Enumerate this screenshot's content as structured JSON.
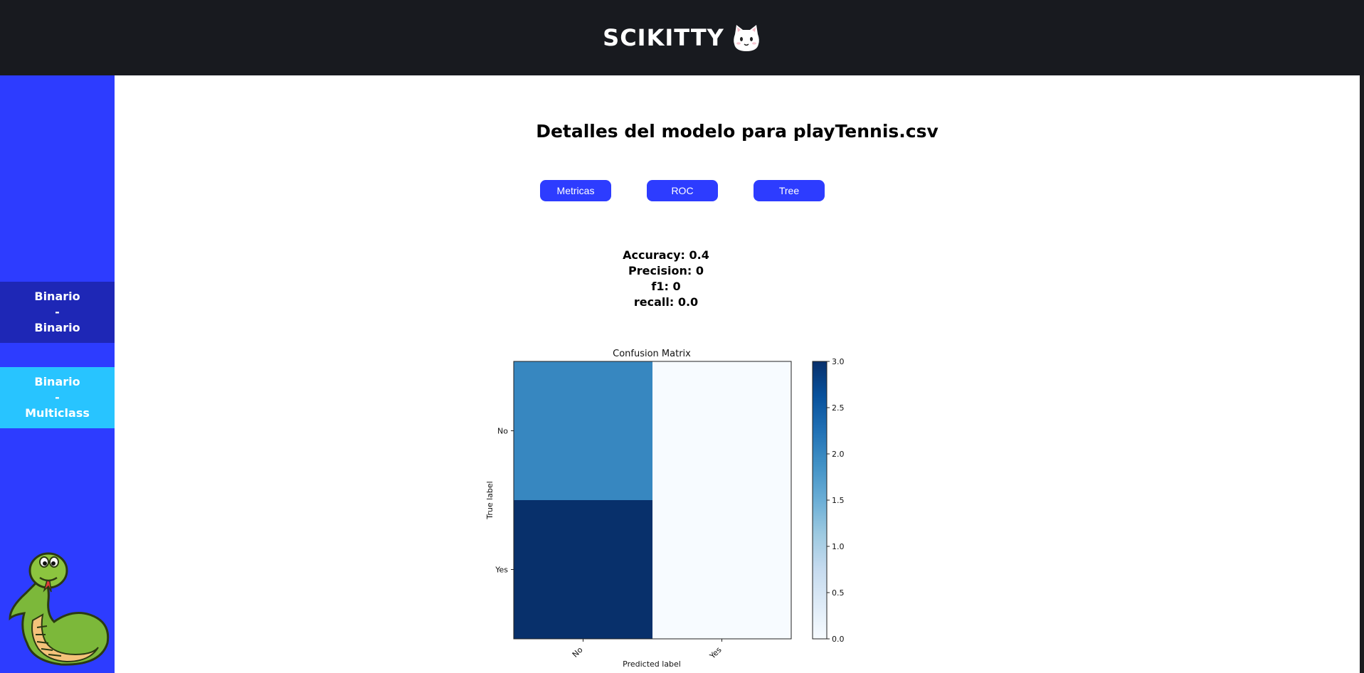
{
  "header": {
    "title": "SCIKITTY",
    "logo_icon": "cat-face-icon"
  },
  "sidebar": {
    "items": [
      {
        "line1": "Binario",
        "sep": "-",
        "line2": "Binario",
        "color": "#1e27b6"
      },
      {
        "line1": "Binario",
        "sep": "-",
        "line2": "Multiclass",
        "color": "#28c4ff"
      }
    ],
    "mascot_icon": "snake-mascot-icon",
    "color": "#2d3cff"
  },
  "main": {
    "title": "Detalles del modelo para playTennis.csv",
    "tabs": [
      {
        "label": "Metricas"
      },
      {
        "label": "ROC"
      },
      {
        "label": "Tree"
      }
    ],
    "metrics": [
      {
        "label": "Accuracy:",
        "value": "0.4"
      },
      {
        "label": "Precision:",
        "value": "0"
      },
      {
        "label": "f1:",
        "value": "0"
      },
      {
        "label": "recall:",
        "value": "0.0"
      }
    ]
  },
  "chart_data": {
    "type": "heatmap",
    "title": "Confusion Matrix",
    "xlabel": "Predicted label",
    "ylabel": "True label",
    "x_categories": [
      "No",
      "Yes"
    ],
    "y_categories": [
      "No",
      "Yes"
    ],
    "values": [
      [
        2,
        0
      ],
      [
        3,
        0
      ]
    ],
    "colormap": "Blues",
    "colorbar": {
      "min": 0,
      "max": 3,
      "ticks": [
        "0.0",
        "0.5",
        "1.0",
        "1.5",
        "2.0",
        "2.5",
        "3.0"
      ]
    }
  }
}
